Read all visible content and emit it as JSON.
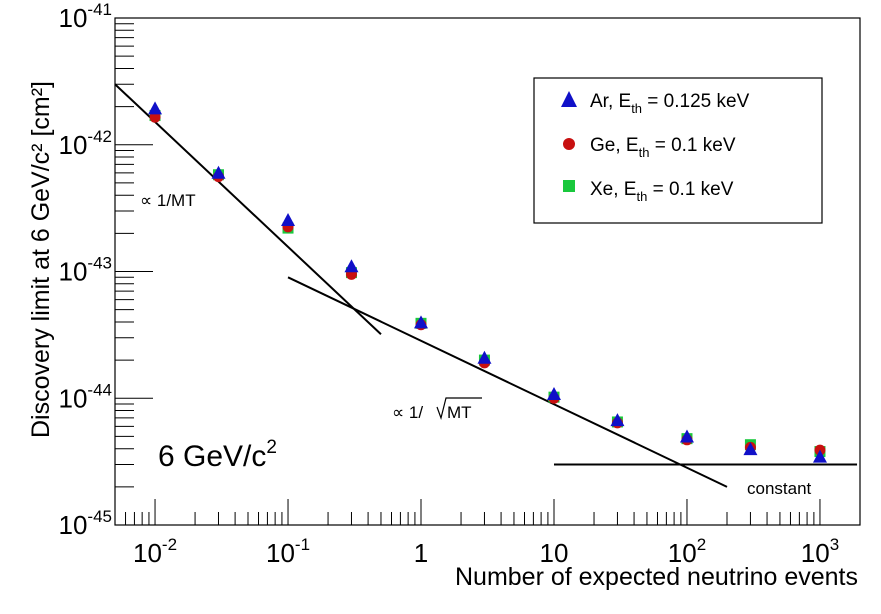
{
  "chart_data": {
    "type": "scatter",
    "x_scale": "log",
    "y_scale": "log",
    "xlim": [
      0.005,
      2000
    ],
    "ylim": [
      1e-45,
      1e-41
    ],
    "xlabel": "Number of expected neutrino events",
    "ylabel": "Discovery limit at 6 GeV/c² [cm²]",
    "x_ticks": [
      {
        "value": 0.01,
        "base": "10",
        "exp": "-2"
      },
      {
        "value": 0.1,
        "base": "10",
        "exp": "-1"
      },
      {
        "value": 1,
        "base": "1",
        "exp": ""
      },
      {
        "value": 10,
        "base": "10",
        "exp": ""
      },
      {
        "value": 100,
        "base": "10",
        "exp": "2"
      },
      {
        "value": 1000,
        "base": "10",
        "exp": "3"
      }
    ],
    "y_ticks": [
      {
        "value": 1e-45,
        "base": "10",
        "exp": "-45"
      },
      {
        "value": 1e-44,
        "base": "10",
        "exp": "-44"
      },
      {
        "value": 1e-43,
        "base": "10",
        "exp": "-43"
      },
      {
        "value": 1e-42,
        "base": "10",
        "exp": "-42"
      },
      {
        "value": 1e-41,
        "base": "10",
        "exp": "-41"
      }
    ],
    "series": [
      {
        "name": "Ar, E_th = 0.125 keV",
        "label_main": "Ar, E",
        "label_sub": "th",
        "label_rest": " = 0.125 keV",
        "marker": "triangle",
        "color": "#1010c8",
        "x": [
          0.01,
          0.03,
          0.1,
          0.3,
          1,
          3,
          10,
          30,
          100,
          300,
          1000
        ],
        "y": [
          1.9e-42,
          5.9e-43,
          2.5e-43,
          1.08e-43,
          3.9e-44,
          2.05e-44,
          1.06e-44,
          6.6e-45,
          4.9e-45,
          3.9e-45,
          3.4e-45
        ]
      },
      {
        "name": "Ge, E_th = 0.1 keV",
        "label_main": "Ge, E",
        "label_sub": "th",
        "label_rest": " = 0.1 keV",
        "marker": "circle",
        "color": "#c81010",
        "x": [
          0.01,
          0.03,
          0.1,
          0.3,
          1,
          3,
          10,
          30,
          100,
          300,
          1000
        ],
        "y": [
          1.65e-42,
          5.6e-43,
          2.25e-43,
          9.5e-44,
          3.8e-44,
          1.9e-44,
          1e-44,
          6.4e-45,
          4.7e-45,
          4.1e-45,
          3.9e-45
        ]
      },
      {
        "name": "Xe, E_th = 0.1 keV",
        "label_main": "Xe, E",
        "label_sub": "th",
        "label_rest": " = 0.1 keV",
        "marker": "square",
        "color": "#19c83c",
        "x": [
          0.01,
          0.03,
          0.1,
          0.3,
          1,
          3,
          10,
          30,
          100,
          300,
          1000
        ],
        "y": [
          1.7e-42,
          5.8e-43,
          2.2e-43,
          9.8e-44,
          3.9e-44,
          2e-44,
          1.02e-44,
          6.5e-45,
          4.8e-45,
          4.3e-45,
          3.8e-45
        ]
      }
    ],
    "reference_lines": [
      {
        "name": "inverse-mt",
        "x": [
          0.005,
          0.5
        ],
        "y": [
          3e-42,
          3.2e-44
        ]
      },
      {
        "name": "inverse-sqrt-mt",
        "x": [
          0.1,
          200
        ],
        "y": [
          9e-44,
          2e-45
        ]
      },
      {
        "name": "constant",
        "x": [
          10,
          1900
        ],
        "y": [
          3e-45,
          3e-45
        ]
      }
    ],
    "annotations": {
      "inv_mt": "∝ 1/MT",
      "inv_sqrt_prefix": "∝ 1/",
      "inv_sqrt_radicand": "MT",
      "constant": "constant",
      "mass_main": "6 GeV/c",
      "mass_sup": "2"
    },
    "legend_position": "top-right",
    "grid": false
  }
}
